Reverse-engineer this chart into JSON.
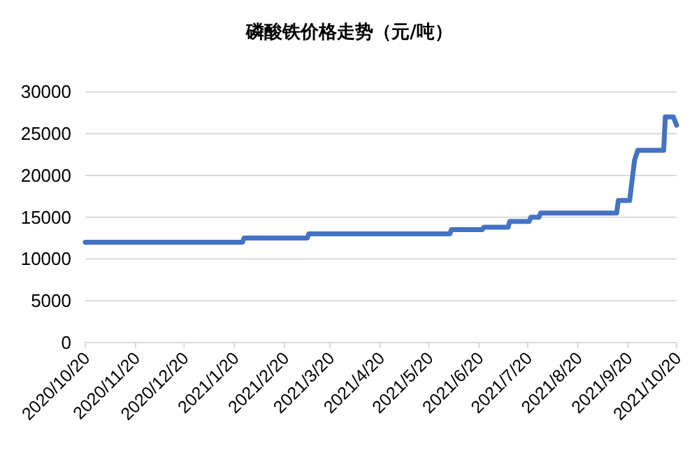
{
  "chart_data": {
    "type": "line",
    "title": "磷酸铁价格走势（元/吨）",
    "series": [
      {
        "color": "#4472c4",
        "x": [
          "2020-10-20",
          "2021-01-25",
          "2021-01-26",
          "2021-03-06",
          "2021-03-07",
          "2021-06-02",
          "2021-06-03",
          "2021-06-22",
          "2021-06-23",
          "2021-07-08",
          "2021-07-09",
          "2021-07-21",
          "2021-07-22",
          "2021-07-27",
          "2021-07-28",
          "2021-09-13",
          "2021-09-14",
          "2021-09-21",
          "2021-09-24",
          "2021-09-26",
          "2021-10-12",
          "2021-10-13",
          "2021-10-18",
          "2021-10-20"
        ],
        "values": [
          12000,
          12000,
          12500,
          12500,
          13000,
          13000,
          13500,
          13500,
          13800,
          13800,
          14500,
          14500,
          15000,
          15000,
          15500,
          15500,
          17000,
          17000,
          21800,
          23000,
          23000,
          27000,
          27000,
          26000
        ]
      }
    ],
    "xlim": [
      "2020-10-20",
      "2021-10-20"
    ],
    "xticks": [
      {
        "value": "2020-10-20",
        "label": "2020/10/20"
      },
      {
        "value": "2020-11-20",
        "label": "2020/11/20"
      },
      {
        "value": "2020-12-20",
        "label": "2020/12/20"
      },
      {
        "value": "2021-01-20",
        "label": "2021/1/20"
      },
      {
        "value": "2021-02-20",
        "label": "2021/2/20"
      },
      {
        "value": "2021-03-20",
        "label": "2021/3/20"
      },
      {
        "value": "2021-04-20",
        "label": "2021/4/20"
      },
      {
        "value": "2021-05-20",
        "label": "2021/5/20"
      },
      {
        "value": "2021-06-20",
        "label": "2021/6/20"
      },
      {
        "value": "2021-07-20",
        "label": "2021/7/20"
      },
      {
        "value": "2021-08-20",
        "label": "2021/8/20"
      },
      {
        "value": "2021-09-20",
        "label": "2021/9/20"
      },
      {
        "value": "2021-10-20",
        "label": "2021/10/20"
      }
    ],
    "ylim": [
      0,
      30000
    ],
    "yticks": [
      0,
      5000,
      10000,
      15000,
      20000,
      25000,
      30000
    ],
    "grid": "y",
    "marker": "none",
    "line_style": "solid"
  }
}
